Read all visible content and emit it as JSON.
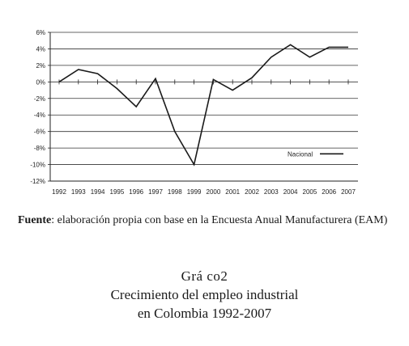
{
  "chart_data": {
    "type": "line",
    "categories": [
      "1992",
      "1993",
      "1994",
      "1995",
      "1996",
      "1997",
      "1998",
      "1999",
      "2000",
      "2001",
      "2002",
      "2003",
      "2004",
      "2005",
      "2006",
      "2007"
    ],
    "series": [
      {
        "name": "Nacional",
        "values": [
          0,
          1.5,
          1.0,
          -0.8,
          -3.0,
          0.4,
          -6.0,
          -10.0,
          0.3,
          -1.0,
          0.5,
          3.0,
          4.5,
          3.0,
          4.2,
          4.2
        ]
      }
    ],
    "ylim": [
      -12,
      6
    ],
    "yticks": [
      6,
      4,
      2,
      0,
      -2,
      -4,
      -6,
      -8,
      -10,
      -12
    ],
    "ytick_labels": [
      "6%",
      "4%",
      "2%",
      "0%",
      "-2%",
      "-4%",
      "-6%",
      "-8%",
      "-10%",
      "-12%"
    ],
    "grid": "horizontal",
    "legend_position": "right",
    "line_color": "#1a1a1a",
    "title": "",
    "xlabel": "",
    "ylabel": ""
  },
  "source": {
    "label": "Fuente",
    "text": ": elaboración propia con base en la Encuesta Anual Manufacturera (EAM)"
  },
  "caption": {
    "figure_number": "Grá  co2",
    "line1": "Crecimiento del empleo industrial",
    "line2": "en Colombia 1992-2007"
  }
}
